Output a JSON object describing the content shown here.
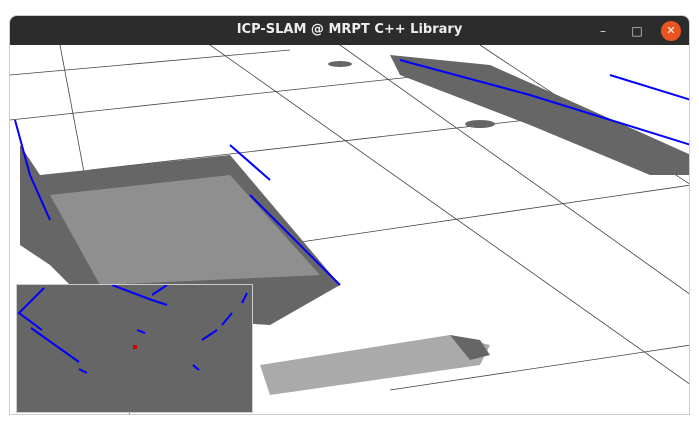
{
  "window": {
    "title": "ICP-SLAM @ MRPT C++ Library",
    "minimize_icon": "minimize-icon",
    "maximize_icon": "maximize-icon",
    "close_icon": "close-icon",
    "close_color": "#e95420"
  },
  "scene": {
    "floor_color": "#ffffff",
    "map_color": "#666666",
    "points_color": "#0000ff",
    "robot_color": "#cc0000"
  }
}
